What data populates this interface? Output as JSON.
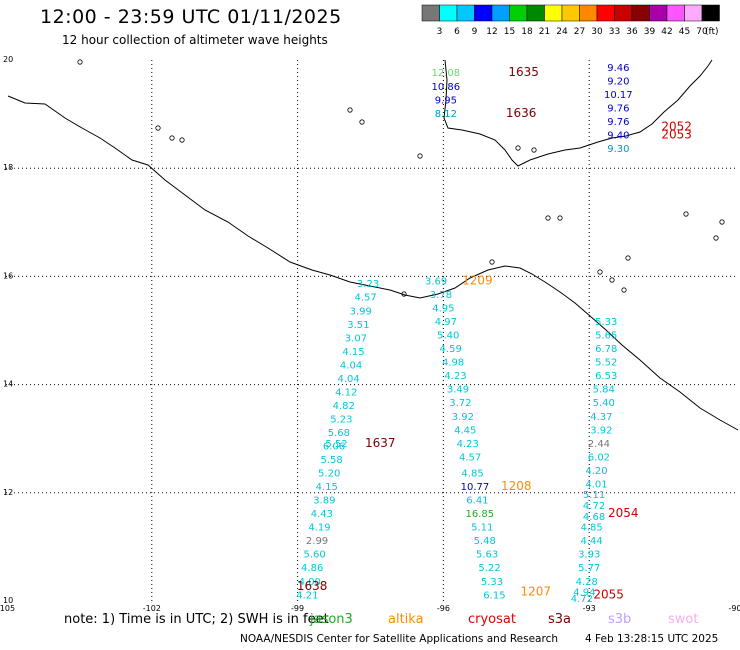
{
  "title": "12:00 - 23:59 UTC 01/11/2025",
  "subtitle": "12 hour collection of altimeter wave heights",
  "legend": {
    "colors": [
      "#777777",
      "#00ffff",
      "#00c8ff",
      "#0000ff",
      "#00a0ff",
      "#00d000",
      "#008800",
      "#ffff00",
      "#ffc800",
      "#ff8800",
      "#ff0000",
      "#c80000",
      "#880000",
      "#aa00aa",
      "#ff55ff",
      "#ffaaff",
      "#000000"
    ],
    "labels": [
      "3",
      "6",
      "9",
      "12",
      "15",
      "18",
      "21",
      "24",
      "27",
      "30",
      "33",
      "36",
      "39",
      "42",
      "45",
      "70"
    ],
    "unit": "(ft)"
  },
  "axes": {
    "lon_ticks": [
      "-105",
      "-102",
      "-99",
      "-96",
      "-93",
      "-90"
    ],
    "lat_ticks": [
      "20",
      "18",
      "16",
      "14",
      "12",
      "10"
    ]
  },
  "tracks": [
    {
      "pass": "1635",
      "color": "#7a0000",
      "lon": -94.35,
      "lat": 19.7
    },
    {
      "pass": "1636",
      "color": "#7a0000",
      "lon": -94.4,
      "lat": 18.95
    },
    {
      "pass": "2052",
      "color": "#d00000",
      "lon": -91.2,
      "lat": 18.7
    },
    {
      "pass": "2053",
      "color": "#d00000",
      "lon": -91.2,
      "lat": 18.55
    },
    {
      "pass": "1209",
      "color": "#ff8c00",
      "lon": -95.3,
      "lat": 15.85
    },
    {
      "pass": "1637",
      "color": "#7a0000",
      "lon": -97.3,
      "lat": 12.85
    },
    {
      "pass": "1208",
      "color": "#ff8c00",
      "lon": -94.5,
      "lat": 12.05
    },
    {
      "pass": "2054",
      "color": "#d00000",
      "lon": -92.3,
      "lat": 11.55
    },
    {
      "pass": "1638",
      "color": "#7a0000",
      "lon": -98.7,
      "lat": 10.2
    },
    {
      "pass": "1207",
      "color": "#ff8c00",
      "lon": -94.1,
      "lat": 10.1
    },
    {
      "pass": "2055",
      "color": "#d00000",
      "lon": -92.6,
      "lat": 10.05
    }
  ],
  "swh": [
    {
      "v": "12.08",
      "c": "#66dd66",
      "lon": -95.95,
      "lat": 19.7
    },
    {
      "v": "10.86",
      "c": "#0000cc",
      "lon": -95.95,
      "lat": 19.45
    },
    {
      "v": "9.95",
      "c": "#0000cc",
      "lon": -95.95,
      "lat": 19.2
    },
    {
      "v": "8.12",
      "c": "#0099cc",
      "lon": -95.95,
      "lat": 18.95
    },
    {
      "v": "9.46",
      "c": "#0000cc",
      "lon": -92.4,
      "lat": 19.8
    },
    {
      "v": "9.20",
      "c": "#0000cc",
      "lon": -92.4,
      "lat": 19.55
    },
    {
      "v": "10.17",
      "c": "#0000cc",
      "lon": -92.4,
      "lat": 19.3
    },
    {
      "v": "9.76",
      "c": "#0000cc",
      "lon": -92.4,
      "lat": 19.05
    },
    {
      "v": "9.76",
      "c": "#0000cc",
      "lon": -92.4,
      "lat": 18.8
    },
    {
      "v": "9.40",
      "c": "#0000cc",
      "lon": -92.4,
      "lat": 18.55
    },
    {
      "v": "9.30",
      "c": "#0099cc",
      "lon": -92.4,
      "lat": 18.3
    },
    {
      "v": "3.23",
      "c": "#00c8d8",
      "lon": -97.55,
      "lat": 15.8
    },
    {
      "v": "4.57",
      "c": "#00c8d8",
      "lon": -97.6,
      "lat": 15.55
    },
    {
      "v": "3.99",
      "c": "#00c8d8",
      "lon": -97.7,
      "lat": 15.3
    },
    {
      "v": "3.51",
      "c": "#00c8d8",
      "lon": -97.75,
      "lat": 15.05
    },
    {
      "v": "3.07",
      "c": "#00c8d8",
      "lon": -97.8,
      "lat": 14.8
    },
    {
      "v": "4.15",
      "c": "#00c8d8",
      "lon": -97.85,
      "lat": 14.55
    },
    {
      "v": "4.04",
      "c": "#00c8d8",
      "lon": -97.9,
      "lat": 14.3
    },
    {
      "v": "4.04",
      "c": "#00c8d8",
      "lon": -97.95,
      "lat": 14.05
    },
    {
      "v": "4.12",
      "c": "#00c8d8",
      "lon": -98.0,
      "lat": 13.8
    },
    {
      "v": "4.82",
      "c": "#00c8d8",
      "lon": -98.05,
      "lat": 13.55
    },
    {
      "v": "5.23",
      "c": "#00c8d8",
      "lon": -98.1,
      "lat": 13.3
    },
    {
      "v": "5.68",
      "c": "#00c8d8",
      "lon": -98.15,
      "lat": 13.05
    },
    {
      "v": "5.52",
      "c": "#00c8d8",
      "lon": -98.2,
      "lat": 12.85
    },
    {
      "v": "6.06",
      "c": "#00c8d8",
      "lon": -98.25,
      "lat": 12.8
    },
    {
      "v": "5.58",
      "c": "#00c8d8",
      "lon": -98.3,
      "lat": 12.55
    },
    {
      "v": "5.20",
      "c": "#00c8d8",
      "lon": -98.35,
      "lat": 12.3
    },
    {
      "v": "4.15",
      "c": "#00c8d8",
      "lon": -98.4,
      "lat": 12.05
    },
    {
      "v": "3.89",
      "c": "#00c8d8",
      "lon": -98.45,
      "lat": 11.8
    },
    {
      "v": "4.43",
      "c": "#00c8d8",
      "lon": -98.5,
      "lat": 11.55
    },
    {
      "v": "4.19",
      "c": "#00c8d8",
      "lon": -98.55,
      "lat": 11.3
    },
    {
      "v": "2.99",
      "c": "#777777",
      "lon": -98.6,
      "lat": 11.05
    },
    {
      "v": "5.60",
      "c": "#00c8d8",
      "lon": -98.65,
      "lat": 10.8
    },
    {
      "v": "4.86",
      "c": "#00c8d8",
      "lon": -98.7,
      "lat": 10.55
    },
    {
      "v": "4.00",
      "c": "#00c8d8",
      "lon": -98.75,
      "lat": 10.3
    },
    {
      "v": "4.21",
      "c": "#00c8d8",
      "lon": -98.8,
      "lat": 10.05
    },
    {
      "v": "3.69",
      "c": "#00c8d8",
      "lon": -96.15,
      "lat": 15.85
    },
    {
      "v": "3.78",
      "c": "#00c8d8",
      "lon": -96.05,
      "lat": 15.6
    },
    {
      "v": "4.95",
      "c": "#00c8d8",
      "lon": -96.0,
      "lat": 15.35
    },
    {
      "v": "4.97",
      "c": "#00c8d8",
      "lon": -95.95,
      "lat": 15.1
    },
    {
      "v": "5.40",
      "c": "#00c8d8",
      "lon": -95.9,
      "lat": 14.85
    },
    {
      "v": "4.59",
      "c": "#00c8d8",
      "lon": -95.85,
      "lat": 14.6
    },
    {
      "v": "4.98",
      "c": "#00c8d8",
      "lon": -95.8,
      "lat": 14.35
    },
    {
      "v": "4.23",
      "c": "#00c8d8",
      "lon": -95.75,
      "lat": 14.1
    },
    {
      "v": "3.49",
      "c": "#00c8d8",
      "lon": -95.7,
      "lat": 13.85
    },
    {
      "v": "3.72",
      "c": "#00c8d8",
      "lon": -95.65,
      "lat": 13.6
    },
    {
      "v": "3.92",
      "c": "#00c8d8",
      "lon": -95.6,
      "lat": 13.35
    },
    {
      "v": "4.45",
      "c": "#00c8d8",
      "lon": -95.55,
      "lat": 13.1
    },
    {
      "v": "4.23",
      "c": "#00c8d8",
      "lon": -95.5,
      "lat": 12.85
    },
    {
      "v": "4.57",
      "c": "#00c8d8",
      "lon": -95.45,
      "lat": 12.6
    },
    {
      "v": "4.85",
      "c": "#00c8d8",
      "lon": -95.4,
      "lat": 12.3
    },
    {
      "v": "10.77",
      "c": "#0000cc",
      "lon": -95.35,
      "lat": 12.05
    },
    {
      "v": "6.41",
      "c": "#00c8d8",
      "lon": -95.3,
      "lat": 11.8
    },
    {
      "v": "16.85",
      "c": "#22aa22",
      "lon": -95.25,
      "lat": 11.55
    },
    {
      "v": "5.11",
      "c": "#00c8d8",
      "lon": -95.2,
      "lat": 11.3
    },
    {
      "v": "5.48",
      "c": "#00c8d8",
      "lon": -95.15,
      "lat": 11.05
    },
    {
      "v": "5.63",
      "c": "#00c8d8",
      "lon": -95.1,
      "lat": 10.8
    },
    {
      "v": "5.22",
      "c": "#00c8d8",
      "lon": -95.05,
      "lat": 10.55
    },
    {
      "v": "5.33",
      "c": "#00c8d8",
      "lon": -95.0,
      "lat": 10.3
    },
    {
      "v": "6.15",
      "c": "#00c8d8",
      "lon": -94.95,
      "lat": 10.05
    },
    {
      "v": "5.33",
      "c": "#00c8d8",
      "lon": -92.65,
      "lat": 15.1
    },
    {
      "v": "5.65",
      "c": "#00c8d8",
      "lon": -92.65,
      "lat": 14.85
    },
    {
      "v": "6.78",
      "c": "#00c8d8",
      "lon": -92.65,
      "lat": 14.6
    },
    {
      "v": "5.52",
      "c": "#00c8d8",
      "lon": -92.65,
      "lat": 14.35
    },
    {
      "v": "6.53",
      "c": "#00c8d8",
      "lon": -92.65,
      "lat": 14.1
    },
    {
      "v": "5.84",
      "c": "#00c8d8",
      "lon": -92.7,
      "lat": 13.85
    },
    {
      "v": "5.40",
      "c": "#00c8d8",
      "lon": -92.7,
      "lat": 13.6
    },
    {
      "v": "4.37",
      "c": "#00c8d8",
      "lon": -92.75,
      "lat": 13.35
    },
    {
      "v": "3.92",
      "c": "#00c8d8",
      "lon": -92.75,
      "lat": 13.1
    },
    {
      "v": "2.44",
      "c": "#777777",
      "lon": -92.8,
      "lat": 12.85
    },
    {
      "v": "6.02",
      "c": "#00c8d8",
      "lon": -92.8,
      "lat": 12.6
    },
    {
      "v": "4.20",
      "c": "#00c8d8",
      "lon": -92.85,
      "lat": 12.35
    },
    {
      "v": "4.01",
      "c": "#00c8d8",
      "lon": -92.85,
      "lat": 12.1
    },
    {
      "v": "5.11",
      "c": "#00c8d8",
      "lon": -92.9,
      "lat": 11.9
    },
    {
      "v": "4.72",
      "c": "#00c8d8",
      "lon": -92.9,
      "lat": 11.7
    },
    {
      "v": "4.68",
      "c": "#00c8d8",
      "lon": -92.9,
      "lat": 11.5
    },
    {
      "v": "4.85",
      "c": "#00c8d8",
      "lon": -92.95,
      "lat": 11.3
    },
    {
      "v": "4.44",
      "c": "#00c8d8",
      "lon": -92.95,
      "lat": 11.05
    },
    {
      "v": "3.93",
      "c": "#00c8d8",
      "lon": -93.0,
      "lat": 10.8
    },
    {
      "v": "5.77",
      "c": "#00c8d8",
      "lon": -93.0,
      "lat": 10.55
    },
    {
      "v": "4.28",
      "c": "#00c8d8",
      "lon": -93.05,
      "lat": 10.3
    },
    {
      "v": "4.94",
      "c": "#00c8d8",
      "lon": -93.1,
      "lat": 10.1
    },
    {
      "v": "4.72",
      "c": "#00c8d8",
      "lon": -93.15,
      "lat": 9.98
    }
  ],
  "note": "note: 1) Time is in UTC; 2) SWH is in feet",
  "satellites": [
    {
      "name": "jason3",
      "color": "#22aa22"
    },
    {
      "name": "altika",
      "color": "#ff8c00"
    },
    {
      "name": "cryosat",
      "color": "#e00000"
    },
    {
      "name": "s3a",
      "color": "#7a0000"
    },
    {
      "name": "s3b",
      "color": "#c0a0ff"
    },
    {
      "name": "swot",
      "color": "#ffaaee"
    }
  ],
  "footer_left": "NOAA/NESDIS Center for Satellite Applications and Research",
  "footer_right": "4 Feb 13:28:15 UTC 2025"
}
